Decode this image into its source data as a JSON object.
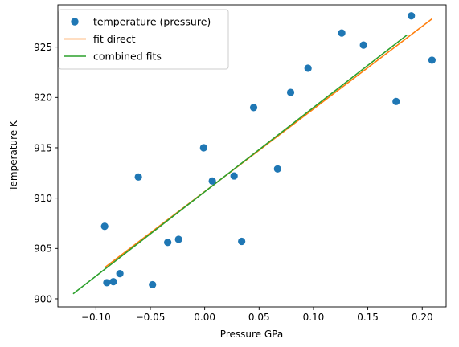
{
  "chart_data": {
    "type": "scatter",
    "xlabel": "Pressure GPa",
    "ylabel": "Temperature K",
    "xlim": [
      -0.135,
      0.222
    ],
    "ylim": [
      899.2,
      929.2
    ],
    "x_ticks": [
      -0.1,
      -0.05,
      0.0,
      0.05,
      0.1,
      0.15,
      0.2
    ],
    "x_tick_labels": [
      "−0.10",
      "−0.05",
      "0.00",
      "0.05",
      "0.10",
      "0.15",
      "0.20"
    ],
    "y_ticks": [
      900,
      905,
      910,
      915,
      920,
      925
    ],
    "y_tick_labels": [
      "900",
      "905",
      "910",
      "915",
      "920",
      "925"
    ],
    "grid": false,
    "legend_position": "upper-left",
    "series": [
      {
        "name": "temperature (pressure)",
        "kind": "points",
        "color": "#1f77b4",
        "x": [
          -0.092,
          -0.09,
          -0.084,
          -0.078,
          -0.061,
          -0.048,
          -0.034,
          -0.024,
          -0.001,
          0.007,
          0.027,
          0.034,
          0.045,
          0.067,
          0.079,
          0.095,
          0.126,
          0.146,
          0.176,
          0.19,
          0.209
        ],
        "y": [
          907.2,
          901.6,
          901.7,
          902.5,
          912.1,
          901.4,
          905.6,
          905.9,
          915.0,
          911.7,
          912.2,
          905.7,
          919.0,
          912.9,
          920.5,
          922.9,
          926.4,
          925.2,
          919.6,
          928.1,
          923.7
        ]
      },
      {
        "name": "fit direct",
        "kind": "line",
        "color": "#ff7f0e",
        "x": [
          -0.092,
          0.209
        ],
        "y": [
          903.1,
          927.8
        ]
      },
      {
        "name": "combined fits",
        "kind": "line",
        "color": "#2ca02c",
        "x": [
          -0.121,
          0.186
        ],
        "y": [
          900.5,
          926.2
        ]
      }
    ]
  }
}
